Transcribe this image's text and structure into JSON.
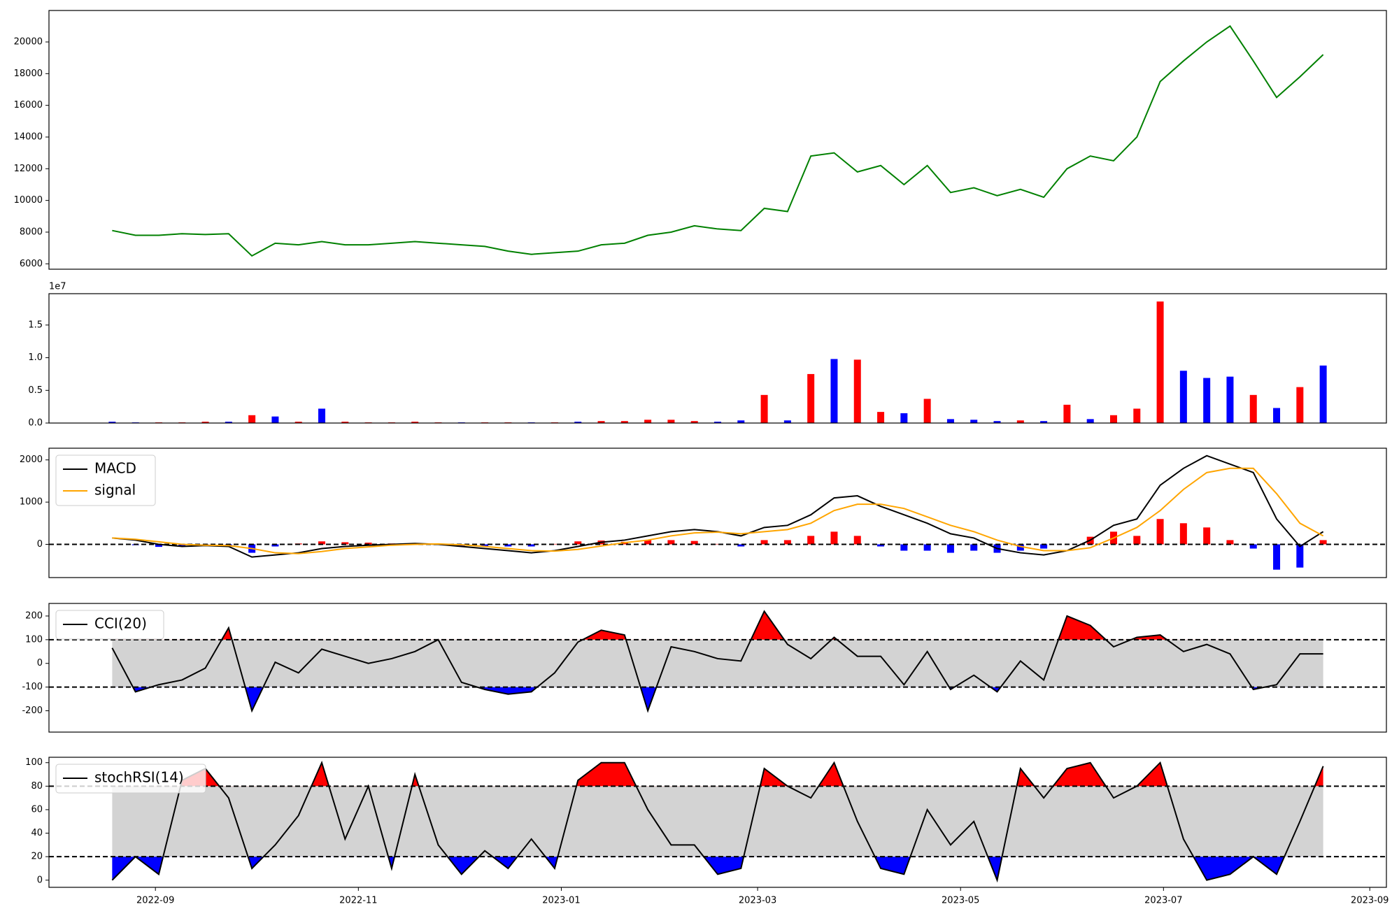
{
  "chart_data": [
    {
      "type": "line",
      "x": [
        "2022-08-19",
        "2022-08-26",
        "2022-09-02",
        "2022-09-09",
        "2022-09-16",
        "2022-09-23",
        "2022-09-30",
        "2022-10-07",
        "2022-10-14",
        "2022-10-21",
        "2022-10-28",
        "2022-11-04",
        "2022-11-11",
        "2022-11-18",
        "2022-11-25",
        "2022-12-02",
        "2022-12-09",
        "2022-12-16",
        "2022-12-23",
        "2022-12-30",
        "2023-01-06",
        "2023-01-13",
        "2023-01-20",
        "2023-01-27",
        "2023-02-03",
        "2023-02-10",
        "2023-02-17",
        "2023-02-24",
        "2023-03-03",
        "2023-03-10",
        "2023-03-17",
        "2023-03-24",
        "2023-03-31",
        "2023-04-07",
        "2023-04-14",
        "2023-04-21",
        "2023-04-28",
        "2023-05-05",
        "2023-05-12",
        "2023-05-19",
        "2023-05-26",
        "2023-06-02",
        "2023-06-09",
        "2023-06-16",
        "2023-06-23",
        "2023-06-30",
        "2023-07-07",
        "2023-07-14",
        "2023-07-21",
        "2023-07-28",
        "2023-08-04",
        "2023-08-11",
        "2023-08-18"
      ],
      "series": [
        {
          "color": "#008000",
          "values": [
            8100,
            7800,
            7800,
            7900,
            7850,
            7900,
            6500,
            7300,
            7200,
            7400,
            7200,
            7200,
            7300,
            7400,
            7300,
            7200,
            7100,
            6800,
            6600,
            6700,
            6800,
            7200,
            7300,
            7800,
            8000,
            8400,
            8200,
            8100,
            9500,
            9300,
            12800,
            13000,
            11800,
            12200,
            11000,
            12200,
            10500,
            10800,
            10300,
            10700,
            10200,
            12000,
            12800,
            12500,
            14000,
            17500,
            18800,
            20000,
            21000,
            18800,
            16500,
            17800,
            19200
          ]
        }
      ],
      "xlim": [
        "2022-07-31",
        "2023-09-06"
      ],
      "ylim": [
        5660,
        21985
      ],
      "yticks": [
        6000,
        8000,
        10000,
        12000,
        14000,
        16000,
        18000,
        20000
      ]
    },
    {
      "type": "bar",
      "x": [
        "2022-08-19",
        "2022-08-26",
        "2022-09-02",
        "2022-09-09",
        "2022-09-16",
        "2022-09-23",
        "2022-09-30",
        "2022-10-07",
        "2022-10-14",
        "2022-10-21",
        "2022-10-28",
        "2022-11-04",
        "2022-11-11",
        "2022-11-18",
        "2022-11-25",
        "2022-12-02",
        "2022-12-09",
        "2022-12-16",
        "2022-12-23",
        "2022-12-30",
        "2023-01-06",
        "2023-01-13",
        "2023-01-20",
        "2023-01-27",
        "2023-02-03",
        "2023-02-10",
        "2023-02-17",
        "2023-02-24",
        "2023-03-03",
        "2023-03-10",
        "2023-03-17",
        "2023-03-24",
        "2023-03-31",
        "2023-04-07",
        "2023-04-14",
        "2023-04-21",
        "2023-04-28",
        "2023-05-05",
        "2023-05-12",
        "2023-05-19",
        "2023-05-26",
        "2023-06-02",
        "2023-06-09",
        "2023-06-16",
        "2023-06-23",
        "2023-06-30",
        "2023-07-07",
        "2023-07-14",
        "2023-07-21",
        "2023-07-28",
        "2023-08-04",
        "2023-08-11",
        "2023-08-18"
      ],
      "values": [
        0.02,
        0.01,
        0.01,
        0.01,
        0.02,
        0.02,
        0.12,
        0.1,
        0.02,
        0.22,
        0.02,
        0.01,
        0.01,
        0.02,
        0.01,
        0.01,
        0.01,
        0.01,
        0.01,
        0.01,
        0.02,
        0.03,
        0.03,
        0.05,
        0.05,
        0.03,
        0.02,
        0.04,
        0.43,
        0.04,
        0.75,
        0.98,
        0.97,
        0.17,
        0.15,
        0.37,
        0.06,
        0.05,
        0.03,
        0.04,
        0.03,
        0.28,
        0.06,
        0.12,
        0.22,
        1.86,
        0.8,
        0.69,
        0.71,
        0.43,
        0.23,
        0.55,
        0.88
      ],
      "colors": [
        "#0000ff",
        "#0000ff",
        "#ff0000",
        "#ff0000",
        "#ff0000",
        "#0000ff",
        "#ff0000",
        "#0000ff",
        "#ff0000",
        "#0000ff",
        "#ff0000",
        "#ff0000",
        "#ff0000",
        "#ff0000",
        "#ff0000",
        "#0000ff",
        "#ff0000",
        "#ff0000",
        "#0000ff",
        "#ff0000",
        "#0000ff",
        "#ff0000",
        "#ff0000",
        "#ff0000",
        "#ff0000",
        "#ff0000",
        "#0000ff",
        "#0000ff",
        "#ff0000",
        "#0000ff",
        "#ff0000",
        "#0000ff",
        "#ff0000",
        "#ff0000",
        "#0000ff",
        "#ff0000",
        "#0000ff",
        "#0000ff",
        "#0000ff",
        "#ff0000",
        "#0000ff",
        "#ff0000",
        "#0000ff",
        "#ff0000",
        "#ff0000",
        "#ff0000",
        "#0000ff",
        "#0000ff",
        "#0000ff",
        "#ff0000",
        "#0000ff",
        "#ff0000",
        "#0000ff"
      ],
      "offset_label": "1e7",
      "xlim": [
        "2022-07-31",
        "2023-09-06"
      ],
      "ylim": [
        0,
        1.98
      ],
      "yticks": [
        {
          "value": 0,
          "label": "0.0"
        },
        0.5,
        {
          "value": 1,
          "label": "1.0"
        },
        1.5
      ]
    },
    {
      "type": "macd",
      "x": [
        "2022-08-19",
        "2022-08-26",
        "2022-09-02",
        "2022-09-09",
        "2022-09-16",
        "2022-09-23",
        "2022-09-30",
        "2022-10-07",
        "2022-10-14",
        "2022-10-21",
        "2022-10-28",
        "2022-11-04",
        "2022-11-11",
        "2022-11-18",
        "2022-11-25",
        "2022-12-02",
        "2022-12-09",
        "2022-12-16",
        "2022-12-23",
        "2022-12-30",
        "2023-01-06",
        "2023-01-13",
        "2023-01-20",
        "2023-01-27",
        "2023-02-03",
        "2023-02-10",
        "2023-02-17",
        "2023-02-24",
        "2023-03-03",
        "2023-03-10",
        "2023-03-17",
        "2023-03-24",
        "2023-03-31",
        "2023-04-07",
        "2023-04-14",
        "2023-04-21",
        "2023-04-28",
        "2023-05-05",
        "2023-05-12",
        "2023-05-19",
        "2023-05-26",
        "2023-06-02",
        "2023-06-09",
        "2023-06-16",
        "2023-06-23",
        "2023-06-30",
        "2023-07-07",
        "2023-07-14",
        "2023-07-21",
        "2023-07-28",
        "2023-08-04",
        "2023-08-11",
        "2023-08-18"
      ],
      "series": [
        {
          "name": "MACD",
          "color": "#000000",
          "values": [
            150,
            100,
            0,
            -50,
            -30,
            -50,
            -300,
            -250,
            -200,
            -100,
            -50,
            -20,
            0,
            20,
            0,
            -50,
            -100,
            -150,
            -200,
            -150,
            -50,
            50,
            100,
            200,
            300,
            350,
            300,
            200,
            400,
            450,
            700,
            1100,
            1150,
            900,
            700,
            500,
            250,
            150,
            -100,
            -200,
            -250,
            -150,
            100,
            450,
            600,
            1400,
            1800,
            2100,
            1900,
            1700,
            600,
            -50,
            300
          ]
        },
        {
          "name": "signal",
          "color": "#ffa500",
          "values": [
            150,
            120,
            60,
            0,
            -20,
            -30,
            -100,
            -200,
            -220,
            -170,
            -100,
            -60,
            -20,
            0,
            10,
            -10,
            -50,
            -100,
            -150,
            -160,
            -120,
            -40,
            40,
            100,
            200,
            270,
            290,
            250,
            300,
            350,
            500,
            800,
            950,
            950,
            850,
            650,
            450,
            300,
            100,
            -50,
            -150,
            -150,
            -80,
            150,
            400,
            800,
            1300,
            1700,
            1800,
            1800,
            1200,
            500,
            200
          ]
        }
      ],
      "histogram": {
        "values": [
          0,
          -20,
          -60,
          -50,
          -10,
          -20,
          -200,
          -50,
          20,
          70,
          50,
          40,
          20,
          20,
          -10,
          -40,
          -50,
          -50,
          -50,
          10,
          70,
          90,
          60,
          100,
          100,
          80,
          10,
          -50,
          100,
          100,
          200,
          300,
          200,
          -50,
          -150,
          -150,
          -200,
          -150,
          -200,
          -150,
          -100,
          0,
          180,
          300,
          200,
          600,
          500,
          400,
          100,
          -100,
          -600,
          -550,
          100
        ],
        "positive_color": "#ff0000",
        "negative_color": "#0000ff"
      },
      "hline": 0,
      "legend": "upper left",
      "xlim": [
        "2022-07-31",
        "2023-09-06"
      ],
      "ylim": [
        -787,
        2277
      ],
      "yticks": [
        0,
        1000,
        2000
      ]
    },
    {
      "type": "oscillator",
      "x": [
        "2022-08-19",
        "2022-08-26",
        "2022-09-02",
        "2022-09-09",
        "2022-09-16",
        "2022-09-23",
        "2022-09-30",
        "2022-10-07",
        "2022-10-14",
        "2022-10-21",
        "2022-10-28",
        "2022-11-04",
        "2022-11-11",
        "2022-11-18",
        "2022-11-25",
        "2022-12-02",
        "2022-12-09",
        "2022-12-16",
        "2022-12-23",
        "2022-12-30",
        "2023-01-06",
        "2023-01-13",
        "2023-01-20",
        "2023-01-27",
        "2023-02-03",
        "2023-02-10",
        "2023-02-17",
        "2023-02-24",
        "2023-03-03",
        "2023-03-10",
        "2023-03-17",
        "2023-03-24",
        "2023-03-31",
        "2023-04-07",
        "2023-04-14",
        "2023-04-21",
        "2023-04-28",
        "2023-05-05",
        "2023-05-12",
        "2023-05-19",
        "2023-05-26",
        "2023-06-02",
        "2023-06-09",
        "2023-06-16",
        "2023-06-23",
        "2023-06-30",
        "2023-07-07",
        "2023-07-14",
        "2023-07-21",
        "2023-07-28",
        "2023-08-04",
        "2023-08-11",
        "2023-08-18"
      ],
      "series": [
        {
          "name": "CCI(20)",
          "color": "#000000",
          "values": [
            65,
            -120,
            -90,
            -70,
            -20,
            150,
            -200,
            5,
            -40,
            60,
            30,
            0,
            20,
            50,
            100,
            -80,
            -110,
            -130,
            -120,
            -40,
            90,
            140,
            120,
            -200,
            70,
            50,
            20,
            10,
            220,
            80,
            20,
            110,
            30,
            30,
            -90,
            50,
            -110,
            -50,
            -120,
            10,
            -70,
            200,
            160,
            70,
            110,
            120,
            50,
            80,
            40,
            -110,
            -90,
            40,
            40
          ]
        }
      ],
      "upper": 100,
      "lower": -100,
      "above_color": "#ff0000",
      "below_color": "#0000ff",
      "band_color": "#d3d3d3",
      "legend": "upper left",
      "xlim": [
        "2022-07-31",
        "2023-09-06"
      ],
      "ylim": [
        -290,
        253
      ],
      "yticks": [
        -200,
        -100,
        0,
        100,
        200
      ]
    },
    {
      "type": "oscillator",
      "x": [
        "2022-08-19",
        "2022-08-26",
        "2022-09-02",
        "2022-09-09",
        "2022-09-16",
        "2022-09-23",
        "2022-09-30",
        "2022-10-07",
        "2022-10-14",
        "2022-10-21",
        "2022-10-28",
        "2022-11-04",
        "2022-11-11",
        "2022-11-18",
        "2022-11-25",
        "2022-12-02",
        "2022-12-09",
        "2022-12-16",
        "2022-12-23",
        "2022-12-30",
        "2023-01-06",
        "2023-01-13",
        "2023-01-20",
        "2023-01-27",
        "2023-02-03",
        "2023-02-10",
        "2023-02-17",
        "2023-02-24",
        "2023-03-03",
        "2023-03-10",
        "2023-03-17",
        "2023-03-24",
        "2023-03-31",
        "2023-04-07",
        "2023-04-14",
        "2023-04-21",
        "2023-04-28",
        "2023-05-05",
        "2023-05-12",
        "2023-05-19",
        "2023-05-26",
        "2023-06-02",
        "2023-06-09",
        "2023-06-16",
        "2023-06-23",
        "2023-06-30",
        "2023-07-07",
        "2023-07-14",
        "2023-07-21",
        "2023-07-28",
        "2023-08-04",
        "2023-08-11",
        "2023-08-18"
      ],
      "series": [
        {
          "name": "stochRSI(14)",
          "color": "#000000",
          "values": [
            0,
            20,
            5,
            85,
            95,
            70,
            10,
            30,
            55,
            100,
            35,
            80,
            10,
            90,
            30,
            5,
            25,
            10,
            35,
            10,
            85,
            100,
            100,
            60,
            30,
            30,
            5,
            10,
            95,
            80,
            70,
            100,
            50,
            10,
            5,
            60,
            30,
            50,
            0,
            95,
            70,
            95,
            100,
            70,
            80,
            100,
            35,
            0,
            5,
            20,
            5,
            50,
            97
          ]
        }
      ],
      "upper": 80,
      "lower": 20,
      "above_color": "#ff0000",
      "below_color": "#0000ff",
      "band_color": "#d3d3d3",
      "legend": "upper left",
      "xlim": [
        "2022-07-31",
        "2023-09-06"
      ],
      "ylim": [
        -6.1,
        104.6
      ],
      "yticks": [
        0,
        20,
        40,
        60,
        80,
        100
      ],
      "xticks": [
        {
          "value": "2022-09-01",
          "label": "2022-09"
        },
        {
          "value": "2022-11-01",
          "label": "2022-11"
        },
        {
          "value": "2023-01-01",
          "label": "2023-01"
        },
        {
          "value": "2023-03-01",
          "label": "2023-03"
        },
        {
          "value": "2023-05-01",
          "label": "2023-05"
        },
        {
          "value": "2023-07-01",
          "label": "2023-07"
        },
        {
          "value": "2023-09-01",
          "label": "2023-09"
        }
      ]
    }
  ]
}
